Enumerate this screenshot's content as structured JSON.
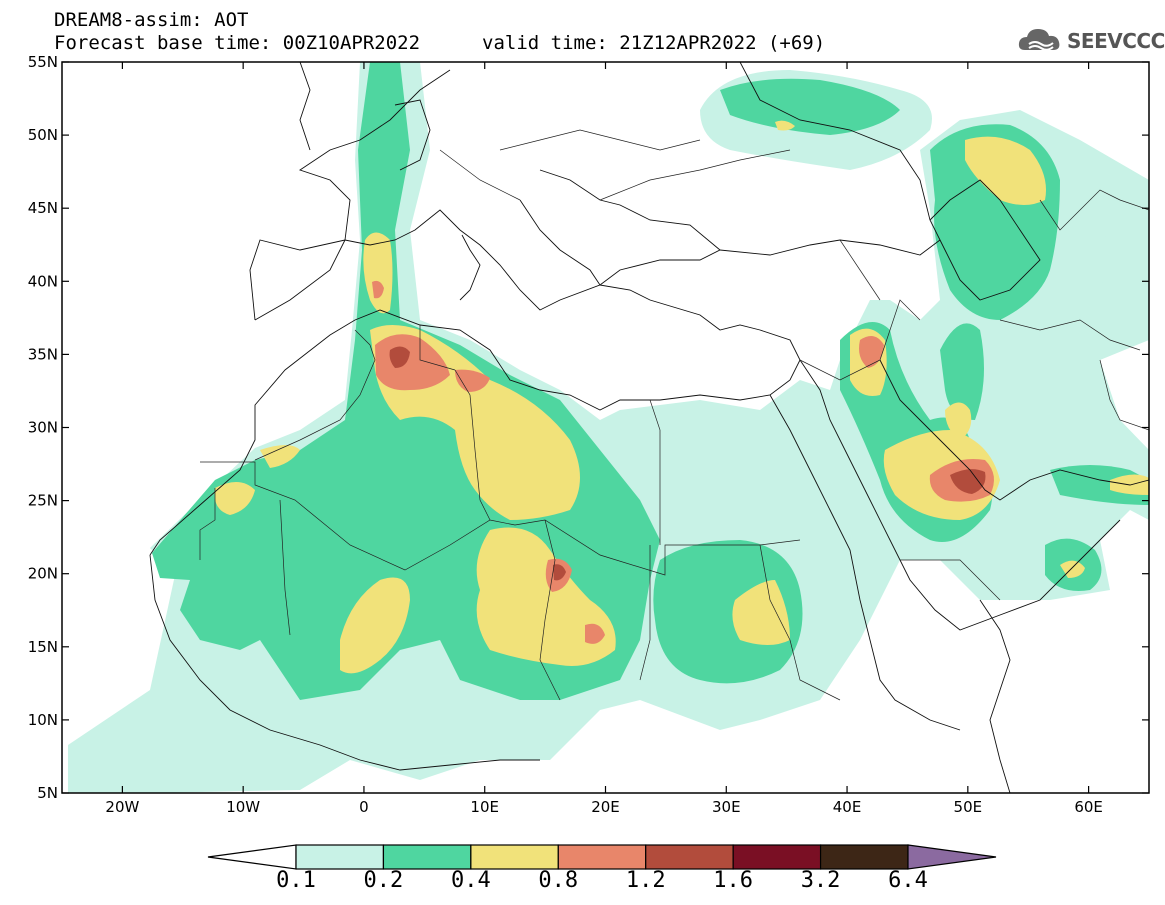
{
  "header": {
    "title_line1": "DREAM8-assim: AOT",
    "title_line2": "Forecast base time: 00Z10APR2022",
    "valid_time": "valid time: 21Z12APR2022 (+69)",
    "logo_text": "SEEVCCC"
  },
  "axes": {
    "lat_labels": [
      "55N",
      "50N",
      "45N",
      "40N",
      "35N",
      "30N",
      "25N",
      "20N",
      "15N",
      "10N",
      "5N"
    ],
    "lon_labels": [
      "20W",
      "10W",
      "0",
      "10E",
      "20E",
      "30E",
      "40E",
      "50E",
      "60E"
    ],
    "lon_range": [
      -25,
      65
    ],
    "lat_range": [
      5,
      55
    ]
  },
  "colorbar": {
    "labels": [
      "0.1",
      "0.2",
      "0.4",
      "0.8",
      "1.2",
      "1.6",
      "3.2",
      "6.4"
    ],
    "colors": [
      "#c8f2e6",
      "#4fd6a0",
      "#f1e27a",
      "#e8866a",
      "#b24c3c",
      "#7a0f24",
      "#3d2616",
      "#8b6aa0"
    ]
  },
  "colors": {
    "level_0_1": "#c8f2e6",
    "level_0_2": "#4fd6a0",
    "level_0_4": "#f1e27a",
    "level_0_8": "#e8866a",
    "level_1_2": "#b24c3c",
    "level_1_6": "#7a0f24"
  }
}
